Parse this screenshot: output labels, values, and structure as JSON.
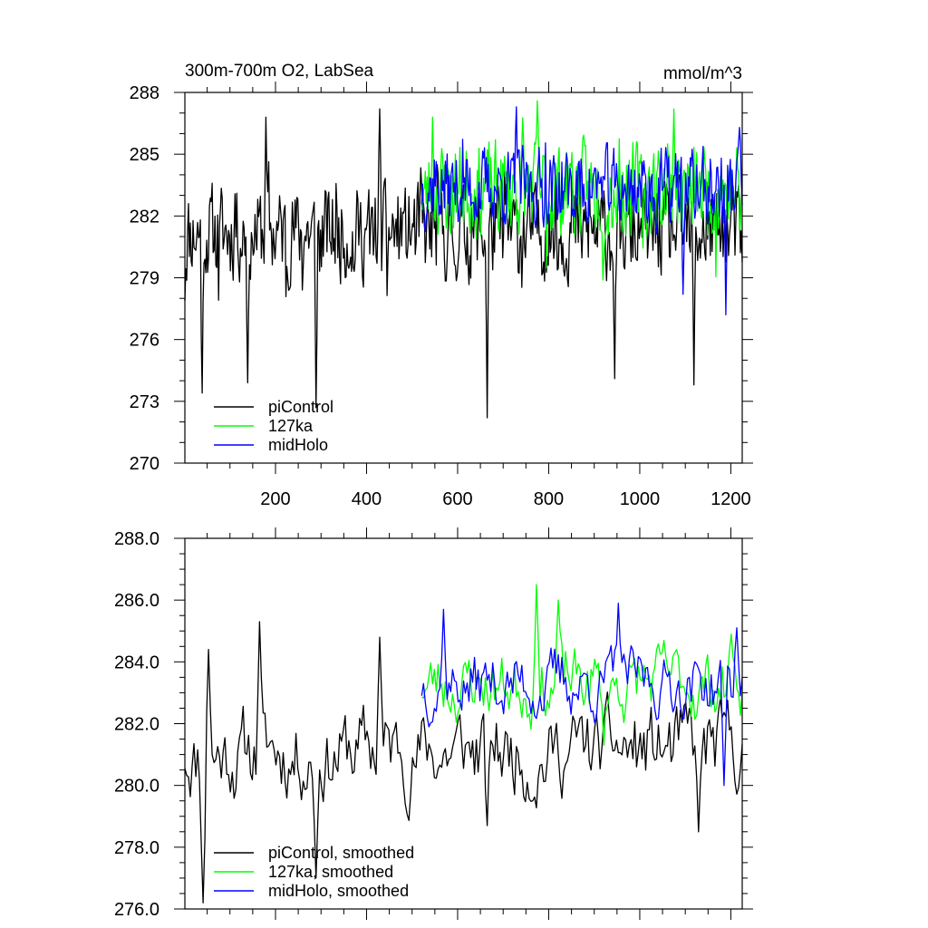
{
  "chart_data": [
    {
      "type": "line",
      "title": "300m-700m O2, LabSea",
      "units": "mmol/m^3",
      "xlabel": "",
      "ylabel": "",
      "xlim": [
        1,
        1225
      ],
      "ylim": [
        270,
        288
      ],
      "xticks": [
        200,
        400,
        600,
        800,
        1000,
        1200
      ],
      "xtick_labels": [
        "200",
        "400",
        "600",
        "800",
        "1000",
        "1200"
      ],
      "yticks": [
        270,
        273,
        276,
        279,
        282,
        285,
        288
      ],
      "ytick_labels": [
        "270",
        "273",
        "276",
        "279",
        "282",
        "285",
        "288"
      ],
      "legend_position": "bottom-left",
      "series": [
        {
          "name": "piControl",
          "color": "#000000",
          "x_start": 1,
          "x_end": 1225,
          "step": 2,
          "mean": 281.2,
          "amplitude": 2.2,
          "spike_every": 37,
          "seed": 11,
          "key_points": [
            [
              40,
              273.4
            ],
            [
              140,
              273.9
            ],
            [
              180,
              286.8
            ],
            [
              290,
              272.7
            ],
            [
              430,
              287.2
            ],
            [
              665,
              272.2
            ],
            [
              945,
              274.1
            ],
            [
              1120,
              273.8
            ]
          ]
        },
        {
          "name": "127ka",
          "color": "#00ff00",
          "x_start": 521,
          "x_end": 1225,
          "step": 2,
          "mean": 283.3,
          "amplitude": 2.2,
          "spike_every": 53,
          "seed": 23,
          "key_points": [
            [
              545,
              286.8
            ],
            [
              775,
              287.6
            ],
            [
              920,
              278.9
            ],
            [
              1075,
              287.2
            ]
          ]
        },
        {
          "name": "midHolo",
          "color": "#0000ff",
          "x_start": 521,
          "x_end": 1225,
          "step": 2,
          "mean": 283.4,
          "amplitude": 1.8,
          "spike_every": 61,
          "seed": 37,
          "key_points": [
            [
              730,
              287.3
            ],
            [
              1095,
              278.2
            ],
            [
              1190,
              277.2
            ],
            [
              1220,
              286.3
            ]
          ]
        }
      ],
      "legend": [
        "piControl",
        "127ka",
        "midHolo"
      ]
    },
    {
      "type": "line",
      "title": "",
      "xlabel": "",
      "ylabel": "",
      "xlim": [
        1,
        1225
      ],
      "ylim": [
        276,
        288
      ],
      "xticks": [
        200,
        400,
        600,
        800,
        1000,
        1200
      ],
      "xtick_labels": [],
      "yticks": [
        276,
        278,
        280,
        282,
        284,
        286,
        288
      ],
      "ytick_labels": [
        "276.0",
        "278.0",
        "280.0",
        "282.0",
        "284.0",
        "286.0",
        "288.0"
      ],
      "legend_position": "bottom-left",
      "series": [
        {
          "name": "piControl, smoothed",
          "color": "#000000",
          "x_start": 1,
          "x_end": 1225,
          "step": 4,
          "mean": 281.1,
          "amplitude": 1.6,
          "seed": 11,
          "key_points": [
            [
              40,
              276.2
            ],
            [
              55,
              284.4
            ],
            [
              165,
              285.3
            ],
            [
              290,
              277.0
            ],
            [
              430,
              284.8
            ],
            [
              665,
              278.7
            ],
            [
              1130,
              278.5
            ]
          ]
        },
        {
          "name": "127ka, smoothed",
          "color": "#00ff00",
          "x_start": 521,
          "x_end": 1225,
          "step": 4,
          "mean": 283.3,
          "amplitude": 1.3,
          "seed": 23,
          "key_points": [
            [
              775,
              286.5
            ],
            [
              820,
              286.0
            ],
            [
              920,
              281.3
            ],
            [
              1200,
              284.9
            ]
          ]
        },
        {
          "name": "midHolo, smoothed",
          "color": "#0000ff",
          "x_start": 521,
          "x_end": 1225,
          "step": 4,
          "mean": 283.3,
          "amplitude": 1.2,
          "seed": 37,
          "key_points": [
            [
              570,
              285.7
            ],
            [
              955,
              285.9
            ],
            [
              1185,
              280.0
            ],
            [
              1215,
              285.1
            ]
          ]
        }
      ],
      "legend": [
        "piControl, smoothed",
        "127ka, smoothed",
        "midHolo, smoothed"
      ]
    }
  ]
}
